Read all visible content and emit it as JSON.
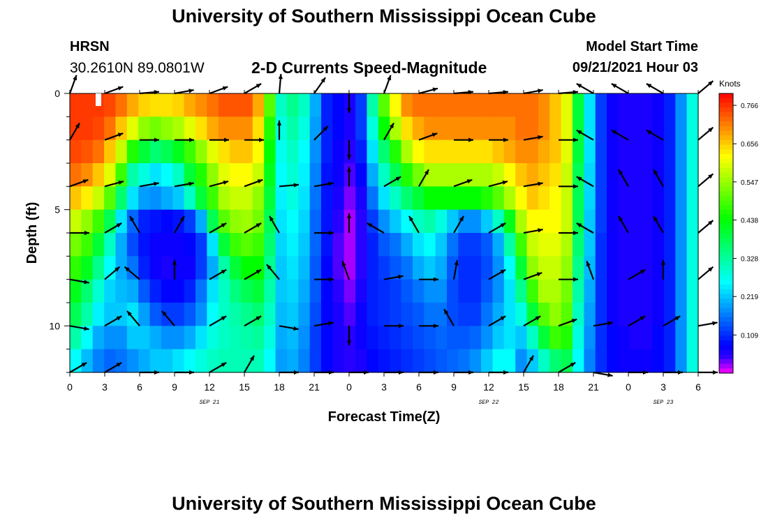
{
  "header": {
    "title": "University of Southern Mississippi Ocean Cube",
    "station": "HRSN",
    "coords": "30.2610N  89.0801W",
    "plot_title": "2-D Currents Speed-Magnitude",
    "model_label": "Model Start Time",
    "model_time": "09/21/2021 Hour 03"
  },
  "footer": {
    "title": "University of Southern Mississippi Ocean Cube"
  },
  "chart_data": {
    "type": "heatmap",
    "title": "2-D Currents Speed-Magnitude",
    "xlabel": "Forecast Time(Z)",
    "ylabel": "Depth (ft)",
    "x_range_hours": [
      0,
      54
    ],
    "ylim": [
      0,
      12
    ],
    "x_tick_labels": [
      "0",
      "3",
      "6",
      "9",
      "12",
      "15",
      "18",
      "21",
      "0",
      "3",
      "6",
      "9",
      "12",
      "15",
      "18",
      "21",
      "0",
      "3",
      "6"
    ],
    "y_tick_labels": [
      "0",
      "5",
      "10"
    ],
    "y_tick_values": [
      0,
      5,
      10
    ],
    "date_labels": [
      {
        "text": "SEP 21",
        "hour": 12
      },
      {
        "text": "SEP 22",
        "hour": 36
      },
      {
        "text": "SEP 23",
        "hour": 51
      }
    ],
    "colorbar": {
      "unit": "Knots",
      "min": 0.0,
      "max": 0.8,
      "tick_labels": [
        "0.766",
        "0.656",
        "0.547",
        "0.438",
        "0.328",
        "0.219",
        "0.109"
      ],
      "tick_values": [
        0.766,
        0.656,
        0.547,
        0.438,
        0.328,
        0.219,
        0.109
      ]
    },
    "grid_rows_depth_ft": [
      0.5,
      1.5,
      2.5,
      3.5,
      4.5,
      5.5,
      6.5,
      7.5,
      8.5,
      9.5,
      10.5,
      11.5
    ],
    "grid_cols_hour": [
      0,
      1,
      2,
      3,
      4,
      5,
      6,
      7,
      8,
      9,
      10,
      11,
      12,
      13,
      14,
      15,
      16,
      17,
      18,
      19,
      20,
      21,
      22,
      23,
      24,
      25,
      26,
      27,
      28,
      29,
      30,
      31,
      32,
      33,
      34,
      35,
      36,
      37,
      38,
      39,
      40,
      41,
      42,
      43,
      44,
      45,
      46,
      47,
      48,
      49,
      50,
      51,
      52,
      53,
      54
    ],
    "speed_profiles_knots": [
      [
        0.76,
        0.76,
        0.75,
        0.72,
        0.66,
        0.58,
        0.52,
        0.47,
        0.42,
        0.38,
        0.32,
        0.26
      ],
      [
        0.76,
        0.76,
        0.74,
        0.7,
        0.63,
        0.54,
        0.48,
        0.42,
        0.36,
        0.32,
        0.26,
        0.21
      ],
      [
        0.76,
        0.75,
        0.72,
        0.66,
        0.58,
        0.48,
        0.4,
        0.34,
        0.29,
        0.25,
        0.2,
        0.17
      ],
      [
        0.75,
        0.72,
        0.66,
        0.6,
        0.5,
        0.38,
        0.3,
        0.26,
        0.23,
        0.22,
        0.18,
        0.15
      ],
      [
        0.72,
        0.66,
        0.58,
        0.48,
        0.36,
        0.24,
        0.2,
        0.2,
        0.21,
        0.22,
        0.18,
        0.16
      ],
      [
        0.68,
        0.6,
        0.46,
        0.32,
        0.24,
        0.15,
        0.13,
        0.16,
        0.2,
        0.24,
        0.22,
        0.18
      ],
      [
        0.65,
        0.54,
        0.4,
        0.28,
        0.19,
        0.1,
        0.09,
        0.1,
        0.14,
        0.19,
        0.22,
        0.2
      ],
      [
        0.64,
        0.52,
        0.36,
        0.24,
        0.18,
        0.09,
        0.07,
        0.07,
        0.1,
        0.14,
        0.2,
        0.22
      ],
      [
        0.64,
        0.54,
        0.38,
        0.26,
        0.2,
        0.08,
        0.07,
        0.06,
        0.08,
        0.12,
        0.18,
        0.22
      ],
      [
        0.65,
        0.56,
        0.42,
        0.3,
        0.22,
        0.09,
        0.07,
        0.07,
        0.08,
        0.12,
        0.18,
        0.24
      ],
      [
        0.68,
        0.6,
        0.48,
        0.4,
        0.3,
        0.12,
        0.08,
        0.07,
        0.1,
        0.14,
        0.2,
        0.26
      ],
      [
        0.7,
        0.64,
        0.54,
        0.46,
        0.4,
        0.2,
        0.12,
        0.12,
        0.16,
        0.18,
        0.24,
        0.28
      ],
      [
        0.72,
        0.68,
        0.6,
        0.54,
        0.48,
        0.38,
        0.24,
        0.2,
        0.24,
        0.26,
        0.28,
        0.3
      ],
      [
        0.74,
        0.7,
        0.64,
        0.6,
        0.56,
        0.5,
        0.4,
        0.32,
        0.3,
        0.3,
        0.3,
        0.31
      ],
      [
        0.74,
        0.7,
        0.66,
        0.62,
        0.58,
        0.54,
        0.48,
        0.4,
        0.35,
        0.32,
        0.31,
        0.31
      ],
      [
        0.74,
        0.7,
        0.66,
        0.62,
        0.58,
        0.55,
        0.5,
        0.44,
        0.38,
        0.34,
        0.32,
        0.31
      ],
      [
        0.68,
        0.64,
        0.62,
        0.58,
        0.54,
        0.52,
        0.48,
        0.44,
        0.4,
        0.36,
        0.33,
        0.31
      ],
      [
        0.5,
        0.46,
        0.44,
        0.42,
        0.4,
        0.38,
        0.36,
        0.34,
        0.32,
        0.3,
        0.28,
        0.26
      ],
      [
        0.3,
        0.28,
        0.27,
        0.26,
        0.25,
        0.24,
        0.23,
        0.22,
        0.22,
        0.21,
        0.2,
        0.19
      ],
      [
        0.34,
        0.32,
        0.3,
        0.29,
        0.28,
        0.26,
        0.25,
        0.24,
        0.23,
        0.22,
        0.21,
        0.2
      ],
      [
        0.3,
        0.28,
        0.26,
        0.25,
        0.24,
        0.23,
        0.22,
        0.21,
        0.2,
        0.19,
        0.18,
        0.17
      ],
      [
        0.2,
        0.19,
        0.18,
        0.17,
        0.16,
        0.15,
        0.15,
        0.14,
        0.14,
        0.13,
        0.12,
        0.12
      ],
      [
        0.1,
        0.1,
        0.1,
        0.09,
        0.09,
        0.09,
        0.09,
        0.08,
        0.08,
        0.08,
        0.08,
        0.08
      ],
      [
        0.08,
        0.08,
        0.07,
        0.07,
        0.06,
        0.05,
        0.04,
        0.04,
        0.05,
        0.06,
        0.06,
        0.06
      ],
      [
        0.06,
        0.06,
        0.05,
        0.04,
        0.03,
        0.02,
        0.02,
        0.02,
        0.03,
        0.04,
        0.05,
        0.05
      ],
      [
        0.12,
        0.12,
        0.1,
        0.08,
        0.06,
        0.05,
        0.05,
        0.05,
        0.06,
        0.07,
        0.07,
        0.06
      ],
      [
        0.32,
        0.28,
        0.24,
        0.2,
        0.16,
        0.12,
        0.1,
        0.1,
        0.1,
        0.1,
        0.09,
        0.08
      ],
      [
        0.5,
        0.44,
        0.36,
        0.3,
        0.24,
        0.18,
        0.14,
        0.12,
        0.11,
        0.11,
        0.1,
        0.09
      ],
      [
        0.62,
        0.56,
        0.46,
        0.38,
        0.3,
        0.22,
        0.16,
        0.14,
        0.12,
        0.12,
        0.11,
        0.1
      ],
      [
        0.7,
        0.64,
        0.56,
        0.46,
        0.36,
        0.26,
        0.2,
        0.16,
        0.14,
        0.13,
        0.12,
        0.11
      ],
      [
        0.72,
        0.68,
        0.62,
        0.52,
        0.4,
        0.3,
        0.24,
        0.2,
        0.16,
        0.14,
        0.13,
        0.12
      ],
      [
        0.72,
        0.7,
        0.64,
        0.56,
        0.44,
        0.32,
        0.26,
        0.22,
        0.18,
        0.16,
        0.14,
        0.13
      ],
      [
        0.72,
        0.7,
        0.64,
        0.56,
        0.44,
        0.28,
        0.22,
        0.2,
        0.18,
        0.16,
        0.15,
        0.14
      ],
      [
        0.72,
        0.7,
        0.64,
        0.56,
        0.44,
        0.22,
        0.16,
        0.14,
        0.13,
        0.13,
        0.14,
        0.15
      ],
      [
        0.72,
        0.7,
        0.64,
        0.56,
        0.44,
        0.18,
        0.12,
        0.11,
        0.11,
        0.12,
        0.14,
        0.16
      ],
      [
        0.72,
        0.7,
        0.64,
        0.56,
        0.44,
        0.18,
        0.12,
        0.11,
        0.11,
        0.12,
        0.15,
        0.18
      ],
      [
        0.72,
        0.7,
        0.64,
        0.56,
        0.46,
        0.22,
        0.14,
        0.13,
        0.14,
        0.16,
        0.18,
        0.22
      ],
      [
        0.72,
        0.7,
        0.66,
        0.58,
        0.5,
        0.3,
        0.2,
        0.18,
        0.18,
        0.2,
        0.22,
        0.26
      ],
      [
        0.72,
        0.7,
        0.68,
        0.62,
        0.56,
        0.42,
        0.32,
        0.26,
        0.24,
        0.24,
        0.24,
        0.26
      ],
      [
        0.72,
        0.72,
        0.7,
        0.66,
        0.62,
        0.56,
        0.48,
        0.4,
        0.34,
        0.28,
        0.22,
        0.18
      ],
      [
        0.72,
        0.72,
        0.7,
        0.68,
        0.66,
        0.62,
        0.58,
        0.54,
        0.48,
        0.4,
        0.3,
        0.22
      ],
      [
        0.7,
        0.7,
        0.68,
        0.66,
        0.64,
        0.62,
        0.6,
        0.58,
        0.56,
        0.5,
        0.4,
        0.3
      ],
      [
        0.66,
        0.66,
        0.66,
        0.64,
        0.62,
        0.62,
        0.6,
        0.58,
        0.56,
        0.54,
        0.48,
        0.36
      ],
      [
        0.6,
        0.6,
        0.6,
        0.58,
        0.58,
        0.58,
        0.56,
        0.54,
        0.52,
        0.5,
        0.46,
        0.38
      ],
      [
        0.4,
        0.4,
        0.4,
        0.38,
        0.38,
        0.38,
        0.36,
        0.34,
        0.32,
        0.3,
        0.28,
        0.26
      ],
      [
        0.24,
        0.24,
        0.24,
        0.23,
        0.23,
        0.22,
        0.22,
        0.21,
        0.2,
        0.19,
        0.18,
        0.17
      ],
      [
        0.12,
        0.12,
        0.12,
        0.12,
        0.12,
        0.12,
        0.11,
        0.11,
        0.11,
        0.11,
        0.11,
        0.11
      ],
      [
        0.07,
        0.07,
        0.07,
        0.07,
        0.07,
        0.07,
        0.07,
        0.07,
        0.07,
        0.07,
        0.08,
        0.08
      ],
      [
        0.06,
        0.06,
        0.06,
        0.06,
        0.06,
        0.06,
        0.06,
        0.06,
        0.06,
        0.06,
        0.07,
        0.07
      ],
      [
        0.06,
        0.06,
        0.06,
        0.06,
        0.06,
        0.06,
        0.06,
        0.06,
        0.06,
        0.06,
        0.06,
        0.07
      ],
      [
        0.06,
        0.06,
        0.06,
        0.06,
        0.06,
        0.06,
        0.06,
        0.06,
        0.06,
        0.06,
        0.06,
        0.07
      ],
      [
        0.07,
        0.07,
        0.07,
        0.07,
        0.07,
        0.07,
        0.07,
        0.07,
        0.07,
        0.07,
        0.08,
        0.08
      ],
      [
        0.1,
        0.1,
        0.1,
        0.1,
        0.1,
        0.1,
        0.1,
        0.1,
        0.1,
        0.1,
        0.1,
        0.1
      ],
      [
        0.18,
        0.18,
        0.18,
        0.18,
        0.18,
        0.18,
        0.18,
        0.18,
        0.18,
        0.18,
        0.18,
        0.18
      ],
      [
        0.28,
        0.28,
        0.28,
        0.28,
        0.28,
        0.28,
        0.28,
        0.28,
        0.28,
        0.28,
        0.28,
        0.28
      ]
    ],
    "vector_depths_ft": [
      0,
      2,
      4,
      6,
      8,
      10,
      12
    ],
    "vector_hours": [
      0,
      3,
      6,
      9,
      12,
      15,
      18,
      21,
      24,
      27,
      30,
      33,
      36,
      39,
      42,
      45,
      48,
      51,
      54
    ],
    "vector_directions_deg": [
      [
        20,
        70,
        85,
        80,
        70,
        60,
        5,
        35,
        180,
        20,
        75,
        85,
        85,
        80,
        85,
        300,
        300,
        300,
        50
      ],
      [
        30,
        70,
        90,
        90,
        90,
        90,
        0,
        45,
        180,
        30,
        70,
        90,
        90,
        80,
        90,
        300,
        300,
        300,
        50
      ],
      [
        70,
        75,
        80,
        80,
        75,
        70,
        85,
        80,
        0,
        60,
        30,
        70,
        75,
        80,
        90,
        300,
        330,
        330,
        50
      ],
      [
        90,
        60,
        330,
        30,
        60,
        60,
        330,
        90,
        0,
        300,
        330,
        30,
        60,
        80,
        90,
        300,
        330,
        330,
        50
      ],
      [
        100,
        50,
        310,
        0,
        60,
        60,
        320,
        90,
        340,
        80,
        90,
        10,
        60,
        70,
        90,
        340,
        60,
        0,
        50
      ],
      [
        100,
        60,
        320,
        320,
        60,
        60,
        100,
        80,
        180,
        90,
        90,
        330,
        60,
        60,
        70,
        80,
        60,
        60,
        80
      ],
      [
        60,
        60,
        90,
        90,
        60,
        30,
        90,
        90,
        90,
        90,
        90,
        90,
        90,
        30,
        60,
        100,
        90,
        90,
        90
      ]
    ]
  }
}
